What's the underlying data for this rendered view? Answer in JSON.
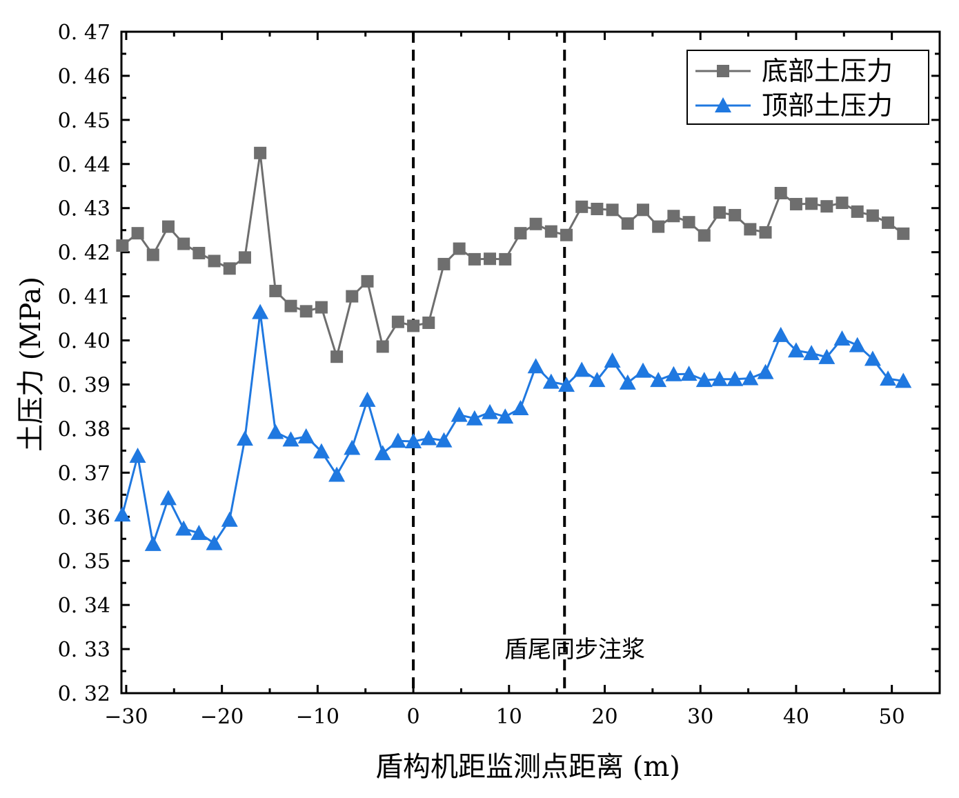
{
  "chart_data": {
    "type": "line",
    "xlabel": "盾构机距监测点距离 (m)",
    "ylabel": "土压力 (MPa)",
    "xlim": [
      -30.5,
      55
    ],
    "ylim": [
      0.32,
      0.47
    ],
    "xticks": [
      -30,
      -20,
      -10,
      0,
      10,
      20,
      30,
      40,
      50
    ],
    "yticks": [
      0.32,
      0.33,
      0.34,
      0.35,
      0.36,
      0.37,
      0.38,
      0.39,
      0.4,
      0.41,
      0.42,
      0.43,
      0.44,
      0.45,
      0.46,
      0.47
    ],
    "xtick_labels": [
      "−30",
      "−20",
      "−10",
      "0",
      "10",
      "20",
      "30",
      "40",
      "50"
    ],
    "ytick_labels": [
      "0. 32",
      "0. 33",
      "0. 34",
      "0. 35",
      "0. 36",
      "0. 37",
      "0. 38",
      "0. 39",
      "0. 40",
      "0. 41",
      "0. 42",
      "0. 43",
      "0. 44",
      "0. 45",
      "0. 46",
      "0. 47"
    ],
    "vlines": [
      0,
      15.8
    ],
    "annotation": "盾尾同步注浆",
    "legend_position": "top-right",
    "x": [
      -30.4,
      -28.8,
      -27.2,
      -25.6,
      -24.0,
      -22.4,
      -20.8,
      -19.2,
      -17.6,
      -16.0,
      -14.4,
      -12.8,
      -11.2,
      -9.6,
      -8.0,
      -6.4,
      -4.8,
      -3.2,
      -1.6,
      0.0,
      1.6,
      3.2,
      4.8,
      6.4,
      8.0,
      9.6,
      11.2,
      12.8,
      14.4,
      16.0,
      17.6,
      19.2,
      20.8,
      22.4,
      24.0,
      25.6,
      27.2,
      28.8,
      30.4,
      32.0,
      33.6,
      35.2,
      36.8,
      38.4,
      40.0,
      41.6,
      43.2,
      44.8,
      46.4,
      48.0,
      49.6,
      51.2
    ],
    "series": [
      {
        "name": "底部土压力",
        "color": "#6e6e6e",
        "marker": "square",
        "values": [
          0.4215,
          0.4243,
          0.4194,
          0.4258,
          0.4219,
          0.4198,
          0.418,
          0.4163,
          0.4188,
          0.4425,
          0.4112,
          0.4078,
          0.4066,
          0.4075,
          0.3963,
          0.41,
          0.4134,
          0.3986,
          0.4042,
          0.4033,
          0.404,
          0.4173,
          0.4208,
          0.4184,
          0.4185,
          0.4184,
          0.4243,
          0.4264,
          0.4247,
          0.4239,
          0.4303,
          0.4298,
          0.4296,
          0.4265,
          0.4296,
          0.4258,
          0.4282,
          0.4268,
          0.4238,
          0.429,
          0.4284,
          0.4252,
          0.4245,
          0.4334,
          0.4309,
          0.431,
          0.4304,
          0.4312,
          0.4292,
          0.4283,
          0.4267,
          0.4242
        ]
      },
      {
        "name": "顶部土压力",
        "color": "#1f78e0",
        "marker": "triangle",
        "values": [
          0.3605,
          0.3738,
          0.3538,
          0.3642,
          0.3573,
          0.3563,
          0.354,
          0.3593,
          0.3777,
          0.4064,
          0.3792,
          0.3775,
          0.3782,
          0.3748,
          0.3695,
          0.3756,
          0.3865,
          0.3744,
          0.3772,
          0.3771,
          0.3778,
          0.3773,
          0.3831,
          0.3823,
          0.3837,
          0.3827,
          0.3846,
          0.3941,
          0.3906,
          0.3899,
          0.3933,
          0.391,
          0.3954,
          0.3904,
          0.3931,
          0.391,
          0.3923,
          0.3924,
          0.391,
          0.3912,
          0.3912,
          0.3914,
          0.3928,
          0.4012,
          0.3977,
          0.3971,
          0.3962,
          0.4004,
          0.3989,
          0.3958,
          0.3913,
          0.3908
        ]
      }
    ]
  }
}
